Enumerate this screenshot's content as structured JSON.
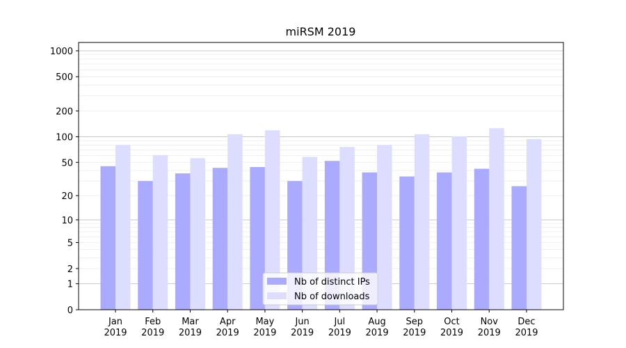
{
  "chart_data": {
    "type": "bar",
    "title": "miRSM 2019",
    "categories": [
      [
        "Jan",
        "2019"
      ],
      [
        "Feb",
        "2019"
      ],
      [
        "Mar",
        "2019"
      ],
      [
        "Apr",
        "2019"
      ],
      [
        "May",
        "2019"
      ],
      [
        "Jun",
        "2019"
      ],
      [
        "Jul",
        "2019"
      ],
      [
        "Aug",
        "2019"
      ],
      [
        "Sep",
        "2019"
      ],
      [
        "Oct",
        "2019"
      ],
      [
        "Nov",
        "2019"
      ],
      [
        "Dec",
        "2019"
      ]
    ],
    "series": [
      {
        "name": "Nb of distinct IPs",
        "color": "#aaaaff",
        "values": [
          45,
          30,
          37,
          43,
          44,
          30,
          52,
          38,
          34,
          38,
          42,
          26
        ]
      },
      {
        "name": "Nb of downloads",
        "color": "#ddddff",
        "values": [
          80,
          61,
          56,
          107,
          119,
          58,
          76,
          80,
          107,
          101,
          126,
          94
        ]
      }
    ],
    "y_scale": "log1p",
    "ylim": [
      0,
      1249
    ],
    "yticks": [
      0,
      1,
      2,
      5,
      10,
      20,
      50,
      100,
      200,
      500,
      1000
    ],
    "major_grid": [
      1,
      10,
      100,
      1000
    ],
    "minor_grid": [
      2,
      3,
      4,
      5,
      6,
      7,
      8,
      9,
      20,
      30,
      40,
      50,
      60,
      70,
      80,
      90,
      200,
      300,
      400,
      500,
      600,
      700,
      800,
      900
    ],
    "legend": "lower center"
  }
}
